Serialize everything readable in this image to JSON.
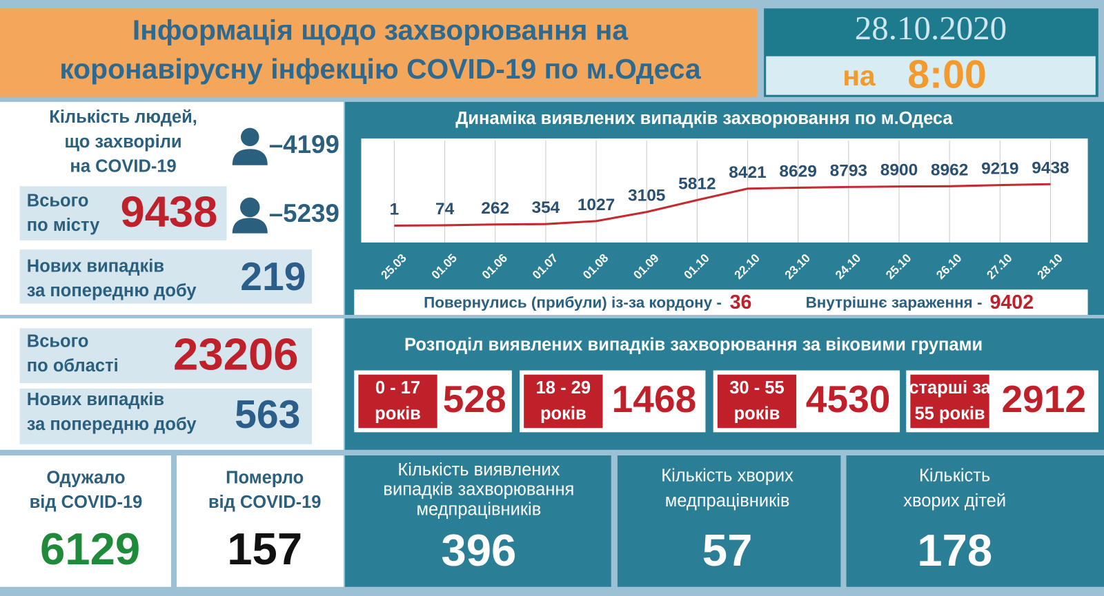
{
  "header": {
    "title": [
      "Інформація щодо захворювання на",
      "коронавірусну інфекцію COVID-19 по м.Одеса"
    ],
    "date": "28.10.2020",
    "time_prefix": "на",
    "time": "8:00"
  },
  "city": {
    "people_label": [
      "Кількість людей,",
      "що захворіли",
      "на COVID-19"
    ],
    "men": "–4199",
    "women": "–5239",
    "total_label": [
      "Всього",
      "по місту"
    ],
    "total": 9438,
    "new_label": [
      "Нових випадків",
      "за попередню добу"
    ],
    "new": 219
  },
  "region": {
    "total_label": [
      "Всього",
      "по області"
    ],
    "total": 23206,
    "new_label": [
      "Нових випадків",
      "за попередню добу"
    ],
    "new": 563
  },
  "chart_data": {
    "type": "line",
    "title": "Динаміка виявлених випадків захворювання по м.Одеса",
    "categories": [
      "25.03",
      "01.05",
      "01.06",
      "01.07",
      "01.08",
      "01.09",
      "01.10",
      "22.10",
      "23.10",
      "24.10",
      "25.10",
      "26.10",
      "27.10",
      "28.10"
    ],
    "values": [
      1,
      74,
      262,
      354,
      1027,
      3105,
      5812,
      8421,
      8629,
      8793,
      8900,
      8962,
      9219,
      9438
    ],
    "color": "#c62a2f",
    "grid": true
  },
  "sources": {
    "returned_label": "Повернулись (прибули) із-за кордону -",
    "returned": 36,
    "local_label": "Внутрішнє зараження  -",
    "local": 9402
  },
  "age": {
    "title": "Розподіл виявлених випадків захворювання за віковими групами",
    "groups": [
      {
        "label": [
          "0 - 17",
          "років"
        ],
        "value": 528
      },
      {
        "label": [
          "18 - 29",
          "років"
        ],
        "value": 1468
      },
      {
        "label": [
          "30 - 55",
          "років"
        ],
        "value": 4530
      },
      {
        "label": [
          "старші за",
          "55 років"
        ],
        "value": 2912
      }
    ]
  },
  "recovered": {
    "label": [
      "Одужало",
      "від COVID-19"
    ],
    "value": 6129
  },
  "died": {
    "label": [
      "Померло",
      "від COVID-19"
    ],
    "value": 157
  },
  "medics_cases": {
    "label": [
      "Кількість виявлених",
      "випадків захворювання",
      "медпрацівників"
    ],
    "value": 396
  },
  "medics_sick": {
    "label": [
      "Кількість хворих",
      "медпрацівників"
    ],
    "value": 57
  },
  "children": {
    "label": [
      "Кількість",
      "хворих дітей"
    ],
    "value": 178
  }
}
